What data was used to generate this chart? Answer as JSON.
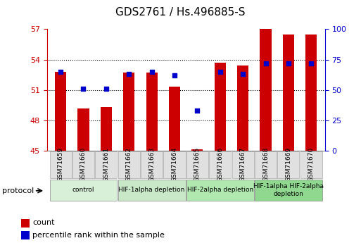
{
  "title": "GDS2761 / Hs.496885-S",
  "samples": [
    "GSM71659",
    "GSM71660",
    "GSM71661",
    "GSM71662",
    "GSM71663",
    "GSM71664",
    "GSM71665",
    "GSM71666",
    "GSM71667",
    "GSM71668",
    "GSM71669",
    "GSM71670"
  ],
  "count_values": [
    52.8,
    49.2,
    49.3,
    52.7,
    52.7,
    51.3,
    45.1,
    53.7,
    53.4,
    57.0,
    56.5,
    56.5
  ],
  "percentile_values": [
    65,
    51,
    51,
    63,
    65,
    62,
    33,
    65,
    63,
    72,
    72,
    72
  ],
  "ylim_left": [
    45,
    57
  ],
  "yticks_left": [
    45,
    48,
    51,
    54,
    57
  ],
  "ylim_right": [
    0,
    100
  ],
  "yticks_right": [
    0,
    25,
    50,
    75,
    100
  ],
  "bar_color": "#cc0000",
  "dot_color": "#0000cc",
  "bar_width": 0.5,
  "protocol_groups": [
    {
      "label": "control",
      "start": 0,
      "end": 2,
      "color": "#d8f0d8"
    },
    {
      "label": "HIF-1alpha depletion",
      "start": 3,
      "end": 5,
      "color": "#c8e8c8"
    },
    {
      "label": "HIF-2alpha depletion",
      "start": 6,
      "end": 8,
      "color": "#b0e8b0"
    },
    {
      "label": "HIF-1alpha HIF-2alpha\ndepletion",
      "start": 9,
      "end": 11,
      "color": "#90d890"
    }
  ],
  "legend_items": [
    {
      "label": "count",
      "color": "#cc0000"
    },
    {
      "label": "percentile rank within the sample",
      "color": "#0000cc"
    }
  ],
  "grid_color": "#000000",
  "left_tick_color": "#cc0000",
  "right_tick_color": "#0000cc",
  "background_color": "#ffffff",
  "plot_bg_color": "#ffffff",
  "tick_label_bg": "#e0e0e0"
}
